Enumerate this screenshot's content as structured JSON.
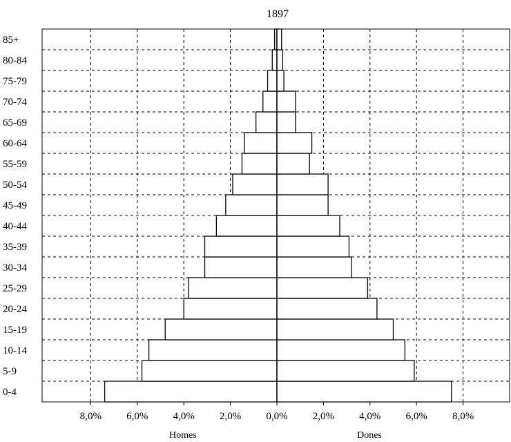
{
  "chart_data": {
    "type": "bar",
    "orientation": "horizontal",
    "title": "1897",
    "xlabel": "",
    "ylabel": "",
    "xlim": [
      -10,
      10
    ],
    "grid": true,
    "legend": "none",
    "categories": [
      "0-4",
      "5-9",
      "10-14",
      "15-19",
      "20-24",
      "25-29",
      "30-34",
      "35-39",
      "40-44",
      "45-49",
      "50-54",
      "55-59",
      "60-64",
      "65-69",
      "70-74",
      "75-79",
      "80-84",
      "85+"
    ],
    "tick_values": [
      -8,
      -6,
      -4,
      -2,
      0,
      2,
      4,
      6,
      8
    ],
    "tick_labels": [
      "8,0%",
      "6,0%",
      "4,0%",
      "2,0%",
      "0,0%",
      "2,0%",
      "4,0%",
      "6,0%",
      "8,0%"
    ],
    "group_labels": {
      "left": "Homes",
      "right": "Dones"
    },
    "series": [
      {
        "name": "Homes",
        "side": "left",
        "values": [
          7.4,
          5.8,
          5.5,
          4.8,
          4.0,
          3.8,
          3.1,
          3.1,
          2.6,
          2.2,
          1.9,
          1.5,
          1.4,
          0.9,
          0.6,
          0.4,
          0.2,
          0.1
        ]
      },
      {
        "name": "Dones",
        "side": "right",
        "values": [
          7.5,
          5.9,
          5.5,
          5.0,
          4.3,
          3.9,
          3.2,
          3.1,
          2.7,
          2.2,
          2.2,
          1.4,
          1.5,
          0.8,
          0.8,
          0.3,
          0.25,
          0.2
        ]
      }
    ],
    "colors": {
      "bar_fill": "#ffffff",
      "bar_stroke": "#000000",
      "grid": "#000000",
      "frame": "#000000"
    }
  }
}
